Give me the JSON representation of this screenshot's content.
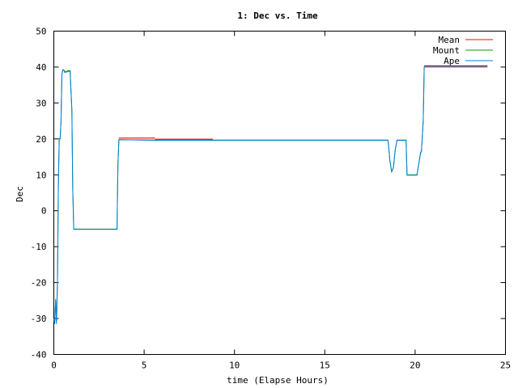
{
  "chart_data": {
    "type": "line",
    "title": "1: Dec vs. Time",
    "xlabel": "time (Elapse Hours)",
    "ylabel": "Dec",
    "xlim": [
      0,
      25
    ],
    "ylim": [
      -40,
      50
    ],
    "xticks": [
      0,
      5,
      10,
      15,
      20,
      25
    ],
    "yticks": [
      -40,
      -30,
      -20,
      -10,
      0,
      10,
      20,
      30,
      40,
      50
    ],
    "grid": false,
    "legend_position": "top-right",
    "series": [
      {
        "name": "Mean",
        "color": "#ff0000",
        "x": [
          3.6,
          5.6,
          5.6,
          8.8
        ],
        "y": [
          20.0,
          20.0,
          19.7,
          19.7
        ],
        "segments": [
          [
            0,
            1
          ],
          [
            2,
            3
          ],
          [
            20.5,
            24.0
          ]
        ],
        "extra": {
          "x": [
            20.5,
            24.0
          ],
          "y": [
            40.1,
            40.1
          ]
        }
      },
      {
        "name": "Mount",
        "color": "#00a000",
        "x": [
          0.0,
          0.05,
          0.1,
          0.15,
          0.2,
          0.25,
          0.3,
          0.35,
          0.4,
          0.45,
          0.5,
          0.55,
          0.6,
          0.7,
          0.8,
          0.9,
          1.0,
          1.05,
          1.1,
          1.15,
          1.2,
          3.5,
          3.55,
          3.6,
          5.6,
          8.8,
          18.5,
          18.6,
          18.7,
          18.8,
          18.9,
          19.0,
          19.5,
          19.55,
          20.1,
          20.2,
          20.3,
          20.35,
          20.45,
          20.5,
          24.0
        ],
        "y": [
          -30,
          -31,
          -25,
          -31,
          -20,
          7,
          20,
          20,
          25,
          38,
          39.3,
          39.2,
          38.8,
          38.8,
          39.0,
          39.0,
          28,
          6,
          -5.1,
          -5.1,
          -5.1,
          -5.1,
          13,
          19.8,
          19.7,
          19.7,
          19.7,
          14,
          11,
          12,
          17,
          19.7,
          19.7,
          10,
          10,
          13,
          16,
          16.5,
          25,
          40,
          40
        ]
      },
      {
        "name": "Ape",
        "color": "#0080e0",
        "x": [
          0.0,
          0.05,
          0.1,
          0.15,
          0.2,
          0.25,
          0.3,
          0.35,
          0.4,
          0.45,
          0.5,
          0.55,
          0.6,
          0.7,
          0.8,
          0.9,
          1.0,
          1.05,
          1.1,
          1.15,
          1.2,
          3.5,
          3.55,
          3.6,
          5.6,
          8.8,
          18.5,
          18.6,
          18.7,
          18.8,
          18.9,
          19.0,
          19.5,
          19.55,
          20.1,
          20.2,
          20.3,
          20.35,
          20.45,
          20.5,
          24.0
        ],
        "y": [
          -30,
          -31.5,
          -24.5,
          -31.5,
          -20,
          7,
          20,
          20,
          25,
          38,
          39.3,
          39.2,
          38.5,
          38.6,
          38.8,
          38.8,
          28,
          6,
          -5.2,
          -5.2,
          -5.2,
          -5.2,
          13,
          19.8,
          19.6,
          19.6,
          19.6,
          14,
          10.8,
          12,
          17,
          19.6,
          19.6,
          9.9,
          9.9,
          13,
          16.3,
          16.5,
          25,
          40,
          40
        ]
      }
    ]
  }
}
